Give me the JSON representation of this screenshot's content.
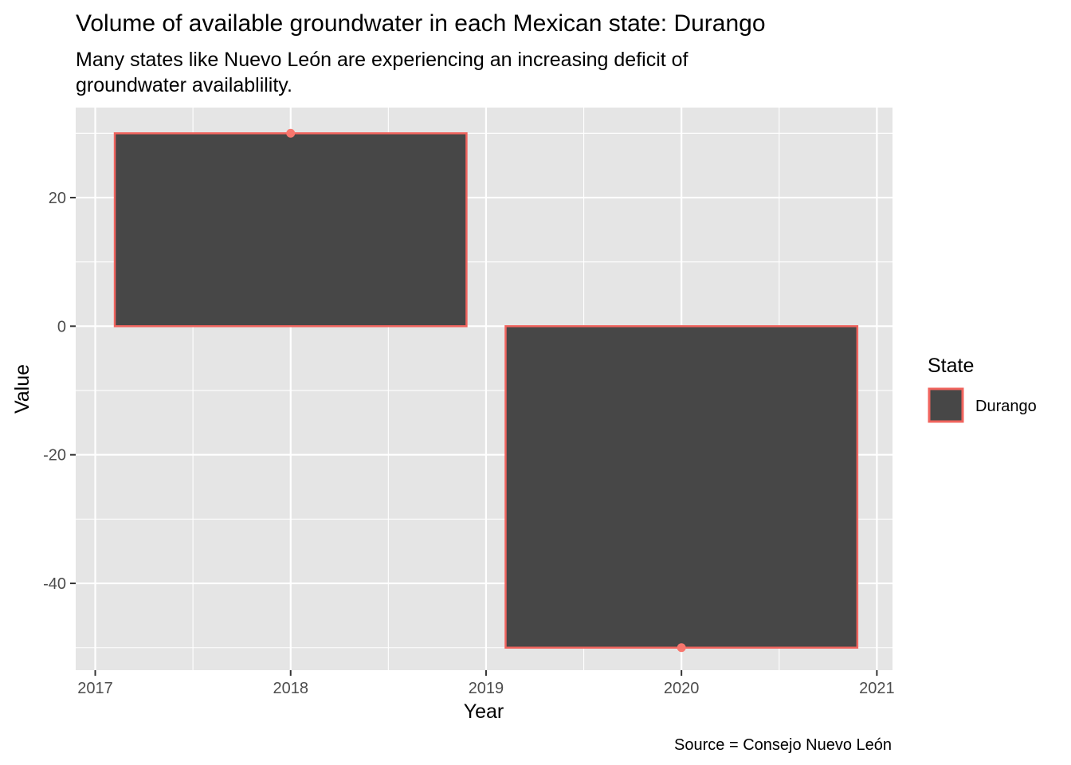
{
  "chart_data": {
    "type": "bar",
    "title": "Volume of available groundwater in each Mexican state: Durango",
    "subtitle_lines": [
      "Many states like Nuevo León are experiencing an increasing deficit of",
      "groundwater availablility."
    ],
    "xlabel": "Year",
    "ylabel": "Value",
    "caption": "Source = Consejo Nuevo León",
    "x": [
      2018,
      2020
    ],
    "values": [
      30,
      -50
    ],
    "bar_width_years": 1.8,
    "xlim": [
      2016.9,
      2021.08
    ],
    "ylim": [
      -53.5,
      34
    ],
    "x_ticks": [
      2017,
      2018,
      2019,
      2020,
      2021
    ],
    "x_minor_ticks": [
      2017.5,
      2018.5,
      2019.5,
      2020.5
    ],
    "y_ticks": [
      -40,
      -20,
      0,
      20
    ],
    "y_minor_ticks": [
      -50,
      -30,
      -10,
      10,
      30
    ],
    "legend": {
      "title": "State",
      "placement": "right",
      "entries": [
        "Durango"
      ]
    },
    "grid": true,
    "colors": {
      "panel": "#e5e5e5",
      "grid": "#ffffff",
      "bar_fill": "#474747",
      "bar_outline": "#f0645e",
      "point": "#f8766d"
    }
  }
}
